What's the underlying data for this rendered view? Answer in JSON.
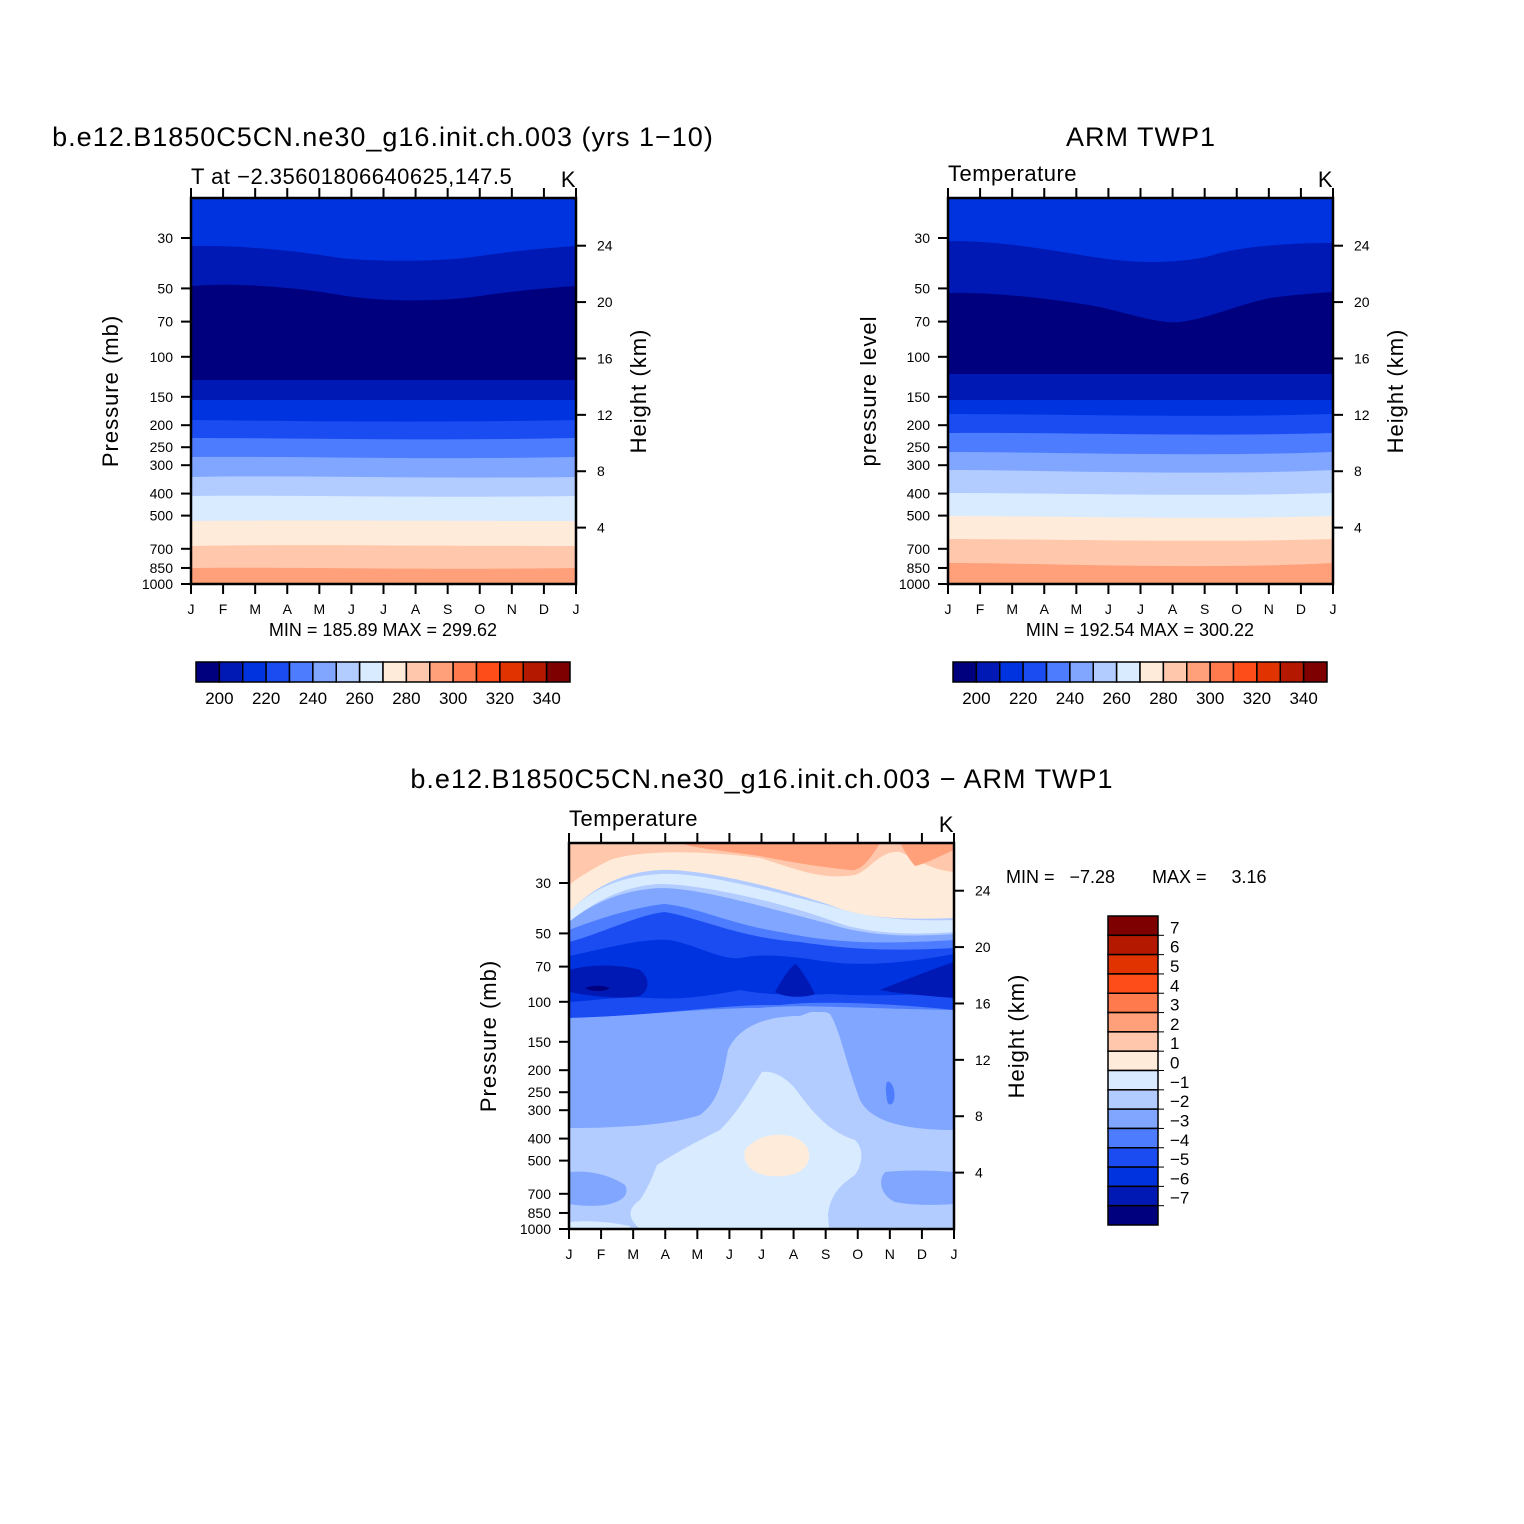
{
  "chart_data": [
    {
      "id": "model",
      "type": "contour",
      "title": "b.e12.B1850C5CN.ne30_g16.init.ch.003 (yrs 1−10)",
      "subtitle_left": "T at −2.35601806640625,147.5",
      "subtitle_right": "K",
      "ylabel": "Pressure (mb)",
      "ylabel_right": "Height (km)",
      "x_ticks": [
        "J",
        "F",
        "M",
        "A",
        "M",
        "J",
        "J",
        "A",
        "S",
        "O",
        "N",
        "D",
        "J"
      ],
      "y_ticks": [
        30,
        50,
        70,
        100,
        150,
        200,
        250,
        300,
        400,
        500,
        700,
        850,
        1000
      ],
      "y_right_ticks": [
        24,
        20,
        16,
        12,
        8,
        4
      ],
      "ylim": [
        1000,
        20
      ],
      "log_scale_y": true,
      "stats": "MIN =  185.89  MAX =  299.62",
      "contour_levels": [
        195,
        200,
        205,
        210,
        215,
        220,
        225,
        230,
        235,
        240,
        245,
        250,
        255,
        260,
        265,
        270,
        275,
        280,
        285,
        290,
        295,
        300,
        305,
        310,
        315,
        320,
        325,
        330,
        335,
        340,
        345,
        350
      ],
      "colorbar_labels": [
        "200",
        "220",
        "240",
        "260",
        "280",
        "300",
        "320",
        "340"
      ]
    },
    {
      "id": "obs",
      "type": "contour",
      "title": "ARM TWP1",
      "subtitle_left": "Temperature",
      "subtitle_right": "K",
      "ylabel": "pressure level",
      "ylabel_right": "Height (km)",
      "x_ticks": [
        "J",
        "F",
        "M",
        "A",
        "M",
        "J",
        "J",
        "A",
        "S",
        "O",
        "N",
        "D",
        "J"
      ],
      "y_ticks": [
        30,
        50,
        70,
        100,
        150,
        200,
        250,
        300,
        400,
        500,
        700,
        850,
        1000
      ],
      "y_right_ticks": [
        24,
        20,
        16,
        12,
        8,
        4
      ],
      "ylim": [
        1000,
        20
      ],
      "log_scale_y": true,
      "stats": "MIN =  192.54  MAX =  300.22",
      "colorbar_labels": [
        "200",
        "220",
        "240",
        "260",
        "280",
        "300",
        "320",
        "340"
      ]
    },
    {
      "id": "diff",
      "type": "contour",
      "title": "b.e12.B1850C5CN.ne30_g16.init.ch.003 − ARM TWP1",
      "subtitle_left": "Temperature",
      "subtitle_right": "K",
      "ylabel": "Pressure (mb)",
      "ylabel_right": "Height (km)",
      "x_ticks": [
        "J",
        "F",
        "M",
        "A",
        "M",
        "J",
        "J",
        "A",
        "S",
        "O",
        "N",
        "D",
        "J"
      ],
      "y_ticks": [
        30,
        50,
        70,
        100,
        150,
        200,
        250,
        300,
        400,
        500,
        700,
        850,
        1000
      ],
      "y_right_ticks": [
        24,
        20,
        16,
        12,
        8,
        4
      ],
      "ylim": [
        1000,
        20
      ],
      "log_scale_y": true,
      "stats_min": "MIN =   −7.28",
      "stats_max": "MAX =     3.16",
      "colorbar_labels": [
        "7",
        "6",
        "5",
        "4",
        "3",
        "2",
        "1",
        "0",
        "−1",
        "−2",
        "−3",
        "−4",
        "−5",
        "−6",
        "−7"
      ]
    }
  ],
  "colors": {
    "palette_ramp": [
      "#00007f",
      "#0019b4",
      "#0033e0",
      "#1a4cf2",
      "#4d7cff",
      "#80a6ff",
      "#b3ccff",
      "#d9ebff",
      "#ffebd9",
      "#ffc8ad",
      "#ffa07a",
      "#ff7a4d",
      "#ff4d1a",
      "#e03300",
      "#b41900",
      "#7f0000"
    ],
    "frame": "#000000"
  }
}
